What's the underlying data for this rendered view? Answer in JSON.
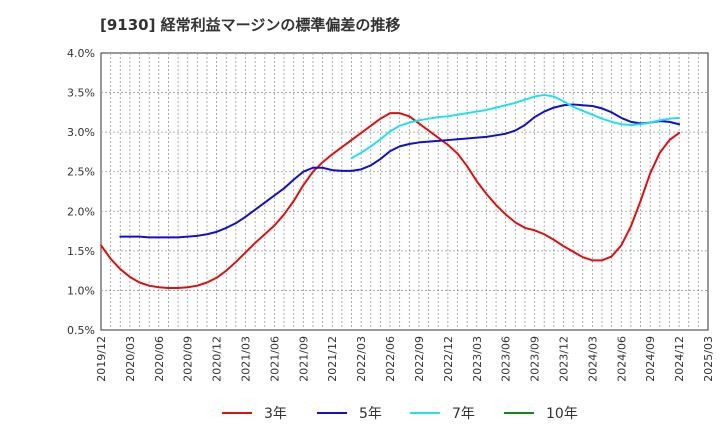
{
  "title": "[9130]  経常利益マージンの標準偏差の推移",
  "colors": {
    "s3": "#dd1111",
    "s5": "#1111cc",
    "s7": "#22e0f0",
    "s10": "#118811",
    "grid": "#999999",
    "axis": "#333333"
  },
  "chart_data": {
    "type": "line",
    "title": "[9130]  経常利益マージンの標準偏差の推移",
    "xlabel": "",
    "ylabel": "",
    "ylim": [
      0.5,
      4.0
    ],
    "y_ticks": [
      "0.5%",
      "1.0%",
      "1.5%",
      "2.0%",
      "2.5%",
      "3.0%",
      "3.5%",
      "4.0%"
    ],
    "x_ticks": [
      "2019/12",
      "2020/03",
      "2020/06",
      "2020/09",
      "2020/12",
      "2021/03",
      "2021/06",
      "2021/09",
      "2021/12",
      "2022/03",
      "2022/06",
      "2022/09",
      "2022/12",
      "2023/03",
      "2023/06",
      "2023/09",
      "2023/12",
      "2024/03",
      "2024/06",
      "2024/09",
      "2024/12",
      "2025/03"
    ],
    "x_range": [
      "2019/12",
      "2025/03"
    ],
    "grid": true,
    "legend_position": "bottom",
    "series": [
      {
        "name": "3年",
        "color": "#dd1111",
        "points": [
          [
            "2019/12",
            1.57
          ],
          [
            "2020/01",
            1.4
          ],
          [
            "2020/02",
            1.27
          ],
          [
            "2020/03",
            1.17
          ],
          [
            "2020/04",
            1.1
          ],
          [
            "2020/05",
            1.06
          ],
          [
            "2020/06",
            1.04
          ],
          [
            "2020/07",
            1.03
          ],
          [
            "2020/08",
            1.03
          ],
          [
            "2020/09",
            1.04
          ],
          [
            "2020/10",
            1.06
          ],
          [
            "2020/11",
            1.1
          ],
          [
            "2020/12",
            1.16
          ],
          [
            "2021/01",
            1.25
          ],
          [
            "2021/02",
            1.36
          ],
          [
            "2021/03",
            1.48
          ],
          [
            "2021/04",
            1.6
          ],
          [
            "2021/05",
            1.71
          ],
          [
            "2021/06",
            1.82
          ],
          [
            "2021/07",
            1.96
          ],
          [
            "2021/08",
            2.13
          ],
          [
            "2021/09",
            2.33
          ],
          [
            "2021/10",
            2.5
          ],
          [
            "2021/11",
            2.62
          ],
          [
            "2021/12",
            2.72
          ],
          [
            "2022/01",
            2.81
          ],
          [
            "2022/02",
            2.9
          ],
          [
            "2022/03",
            2.99
          ],
          [
            "2022/04",
            3.08
          ],
          [
            "2022/05",
            3.17
          ],
          [
            "2022/06",
            3.24
          ],
          [
            "2022/07",
            3.24
          ],
          [
            "2022/08",
            3.2
          ],
          [
            "2022/09",
            3.11
          ],
          [
            "2022/10",
            3.02
          ],
          [
            "2022/11",
            2.93
          ],
          [
            "2022/12",
            2.84
          ],
          [
            "2023/01",
            2.73
          ],
          [
            "2023/02",
            2.57
          ],
          [
            "2023/03",
            2.38
          ],
          [
            "2023/04",
            2.22
          ],
          [
            "2023/05",
            2.08
          ],
          [
            "2023/06",
            1.96
          ],
          [
            "2023/07",
            1.86
          ],
          [
            "2023/08",
            1.79
          ],
          [
            "2023/09",
            1.76
          ],
          [
            "2023/10",
            1.71
          ],
          [
            "2023/11",
            1.64
          ],
          [
            "2023/12",
            1.56
          ],
          [
            "2024/01",
            1.49
          ],
          [
            "2024/02",
            1.42
          ],
          [
            "2024/03",
            1.38
          ],
          [
            "2024/04",
            1.38
          ],
          [
            "2024/05",
            1.43
          ],
          [
            "2024/06",
            1.57
          ],
          [
            "2024/07",
            1.81
          ],
          [
            "2024/08",
            2.13
          ],
          [
            "2024/09",
            2.48
          ],
          [
            "2024/10",
            2.74
          ],
          [
            "2024/11",
            2.9
          ],
          [
            "2024/12",
            2.99
          ]
        ]
      },
      {
        "name": "5年",
        "color": "#1111cc",
        "points": [
          [
            "2020/02",
            1.68
          ],
          [
            "2020/03",
            1.68
          ],
          [
            "2020/04",
            1.68
          ],
          [
            "2020/05",
            1.67
          ],
          [
            "2020/06",
            1.67
          ],
          [
            "2020/07",
            1.67
          ],
          [
            "2020/08",
            1.67
          ],
          [
            "2020/09",
            1.68
          ],
          [
            "2020/10",
            1.69
          ],
          [
            "2020/11",
            1.71
          ],
          [
            "2020/12",
            1.74
          ],
          [
            "2021/01",
            1.79
          ],
          [
            "2021/02",
            1.85
          ],
          [
            "2021/03",
            1.93
          ],
          [
            "2021/04",
            2.02
          ],
          [
            "2021/05",
            2.11
          ],
          [
            "2021/06",
            2.2
          ],
          [
            "2021/07",
            2.29
          ],
          [
            "2021/08",
            2.4
          ],
          [
            "2021/09",
            2.5
          ],
          [
            "2021/10",
            2.55
          ],
          [
            "2021/11",
            2.55
          ],
          [
            "2021/12",
            2.52
          ],
          [
            "2022/01",
            2.51
          ],
          [
            "2022/02",
            2.51
          ],
          [
            "2022/03",
            2.53
          ],
          [
            "2022/04",
            2.58
          ],
          [
            "2022/05",
            2.66
          ],
          [
            "2022/06",
            2.76
          ],
          [
            "2022/07",
            2.82
          ],
          [
            "2022/08",
            2.85
          ],
          [
            "2022/09",
            2.87
          ],
          [
            "2022/10",
            2.88
          ],
          [
            "2022/11",
            2.89
          ],
          [
            "2022/12",
            2.9
          ],
          [
            "2023/01",
            2.91
          ],
          [
            "2023/02",
            2.92
          ],
          [
            "2023/03",
            2.93
          ],
          [
            "2023/04",
            2.94
          ],
          [
            "2023/05",
            2.96
          ],
          [
            "2023/06",
            2.98
          ],
          [
            "2023/07",
            3.02
          ],
          [
            "2023/08",
            3.09
          ],
          [
            "2023/09",
            3.19
          ],
          [
            "2023/10",
            3.26
          ],
          [
            "2023/11",
            3.31
          ],
          [
            "2023/12",
            3.34
          ],
          [
            "2024/01",
            3.35
          ],
          [
            "2024/02",
            3.34
          ],
          [
            "2024/03",
            3.33
          ],
          [
            "2024/04",
            3.3
          ],
          [
            "2024/05",
            3.25
          ],
          [
            "2024/06",
            3.18
          ],
          [
            "2024/07",
            3.13
          ],
          [
            "2024/08",
            3.11
          ],
          [
            "2024/09",
            3.12
          ],
          [
            "2024/10",
            3.14
          ],
          [
            "2024/11",
            3.13
          ],
          [
            "2024/12",
            3.1
          ]
        ]
      },
      {
        "name": "7年",
        "color": "#22e0f0",
        "points": [
          [
            "2022/02",
            2.67
          ],
          [
            "2022/03",
            2.74
          ],
          [
            "2022/04",
            2.82
          ],
          [
            "2022/05",
            2.91
          ],
          [
            "2022/06",
            3.01
          ],
          [
            "2022/07",
            3.08
          ],
          [
            "2022/08",
            3.12
          ],
          [
            "2022/09",
            3.15
          ],
          [
            "2022/10",
            3.17
          ],
          [
            "2022/11",
            3.19
          ],
          [
            "2022/12",
            3.2
          ],
          [
            "2023/01",
            3.22
          ],
          [
            "2023/02",
            3.24
          ],
          [
            "2023/03",
            3.26
          ],
          [
            "2023/04",
            3.28
          ],
          [
            "2023/05",
            3.31
          ],
          [
            "2023/06",
            3.34
          ],
          [
            "2023/07",
            3.37
          ],
          [
            "2023/08",
            3.41
          ],
          [
            "2023/09",
            3.45
          ],
          [
            "2023/10",
            3.47
          ],
          [
            "2023/11",
            3.45
          ],
          [
            "2023/12",
            3.39
          ],
          [
            "2024/01",
            3.32
          ],
          [
            "2024/02",
            3.27
          ],
          [
            "2024/03",
            3.22
          ],
          [
            "2024/04",
            3.17
          ],
          [
            "2024/05",
            3.13
          ],
          [
            "2024/06",
            3.1
          ],
          [
            "2024/07",
            3.09
          ],
          [
            "2024/08",
            3.1
          ],
          [
            "2024/09",
            3.12
          ],
          [
            "2024/10",
            3.15
          ],
          [
            "2024/11",
            3.17
          ],
          [
            "2024/12",
            3.18
          ]
        ]
      },
      {
        "name": "10年",
        "color": "#118811",
        "points": []
      }
    ]
  }
}
